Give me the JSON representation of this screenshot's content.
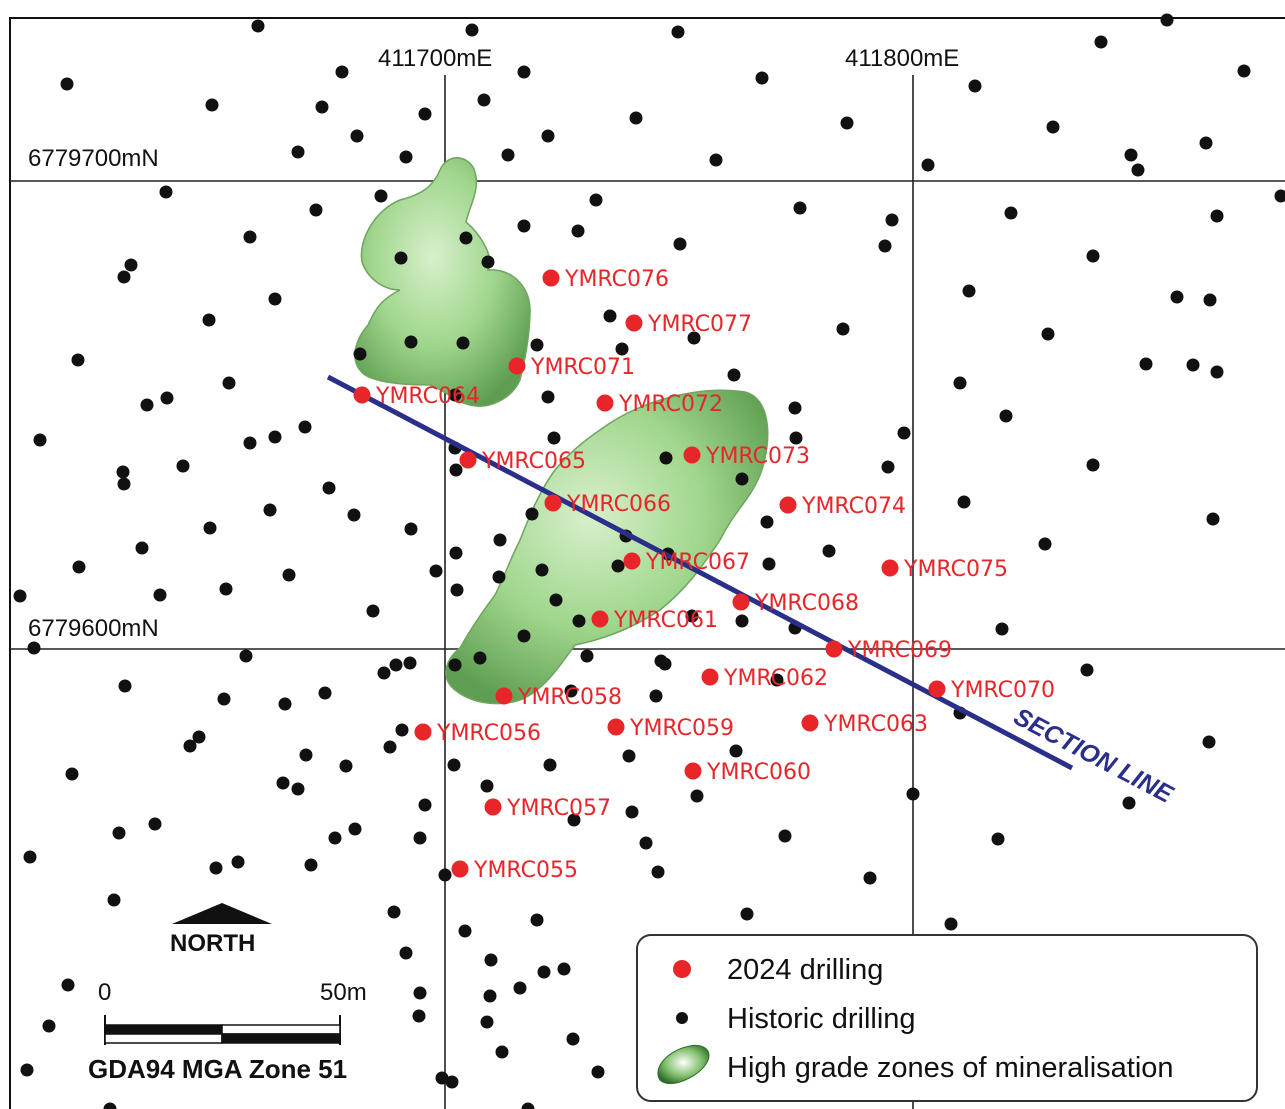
{
  "grid": {
    "easting_labels": [
      "411700mE",
      "411800mE"
    ],
    "northing_labels": [
      "6779700mN",
      "6779600mN"
    ]
  },
  "drill_holes_2024": [
    {
      "id": "YMRC076"
    },
    {
      "id": "YMRC077"
    },
    {
      "id": "YMRC071"
    },
    {
      "id": "YMRC064"
    },
    {
      "id": "YMRC072"
    },
    {
      "id": "YMRC065"
    },
    {
      "id": "YMRC073"
    },
    {
      "id": "YMRC066"
    },
    {
      "id": "YMRC074"
    },
    {
      "id": "YMRC067"
    },
    {
      "id": "YMRC075"
    },
    {
      "id": "YMRC068"
    },
    {
      "id": "YMRC061"
    },
    {
      "id": "YMRC069"
    },
    {
      "id": "YMRC062"
    },
    {
      "id": "YMRC070"
    },
    {
      "id": "YMRC058"
    },
    {
      "id": "YMRC056"
    },
    {
      "id": "YMRC059"
    },
    {
      "id": "YMRC063"
    },
    {
      "id": "YMRC060"
    },
    {
      "id": "YMRC057"
    },
    {
      "id": "YMRC055"
    }
  ],
  "section_line": {
    "label": "SECTION LINE",
    "color": "#2a2f8a"
  },
  "north_arrow": {
    "label": "NORTH"
  },
  "scale_bar": {
    "start_label": "0",
    "end_label": "50m"
  },
  "datum": "GDA94 MGA Zone 51",
  "legend": {
    "items": [
      {
        "label": "2024 drilling",
        "symbol": "red-dot",
        "color": "#e8262a"
      },
      {
        "label": "Historic drilling",
        "symbol": "black-dot",
        "color": "#111111"
      },
      {
        "label": "High grade zones of mineralisation",
        "symbol": "green-blob",
        "color": "#7fbf6a"
      }
    ]
  },
  "colors": {
    "red_hole": "#e8262a",
    "historic": "#111111",
    "mineral": "#9fd68c",
    "grid": "#222222"
  }
}
